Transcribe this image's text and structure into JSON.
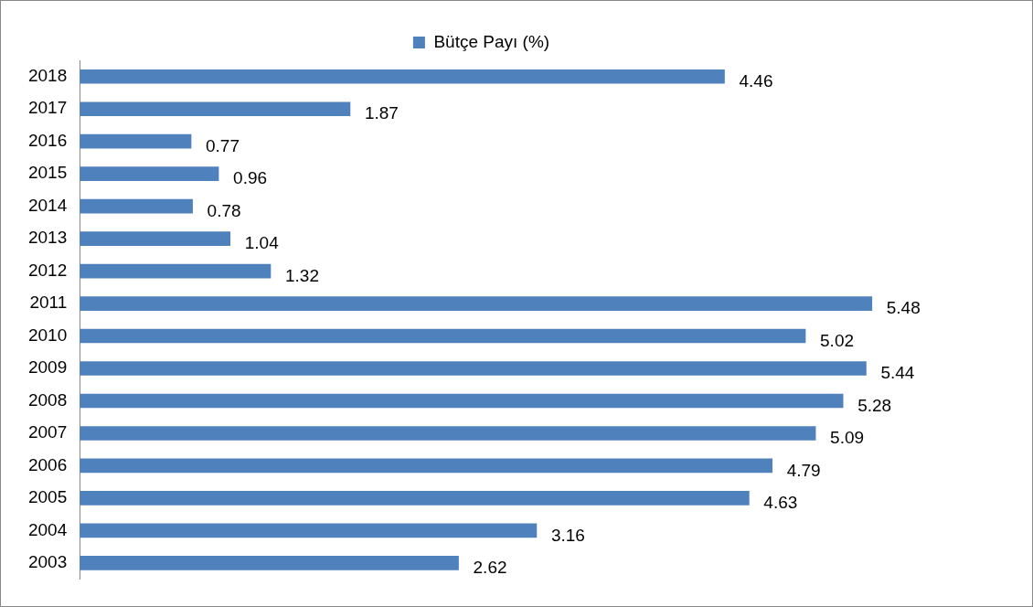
{
  "chart_data": {
    "type": "bar",
    "orientation": "horizontal",
    "categories": [
      "2018",
      "2017",
      "2016",
      "2015",
      "2014",
      "2013",
      "2012",
      "2011",
      "2010",
      "2009",
      "2008",
      "2007",
      "2006",
      "2005",
      "2004",
      "2003"
    ],
    "series": [
      {
        "name": "Bütçe Payı (%)",
        "color": "#4f81bd",
        "values": [
          4.46,
          1.87,
          0.77,
          0.96,
          0.78,
          1.04,
          1.32,
          5.48,
          5.02,
          5.44,
          5.28,
          5.09,
          4.79,
          4.63,
          3.16,
          2.62
        ]
      }
    ],
    "data_labels": true,
    "legend": "top",
    "grid": false,
    "tick_labels": "y"
  }
}
